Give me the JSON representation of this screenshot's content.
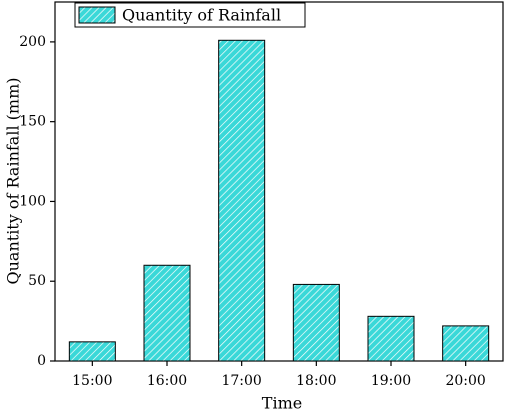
{
  "chart_data": {
    "type": "bar",
    "x_label": "Time",
    "y_label": "Quantity of Rainfall (mm)",
    "categories": [
      "15:00",
      "16:00",
      "17:00",
      "18:00",
      "19:00",
      "20:00"
    ],
    "series": [
      {
        "name": "Quantity of Rainfall",
        "color": "#3ad8d8",
        "values": [
          12,
          60,
          201,
          48,
          28,
          22
        ]
      }
    ],
    "ylim": [
      0,
      225
    ],
    "yticks": [
      0,
      50,
      100,
      150,
      200
    ],
    "hatch": true,
    "legend": "top-left"
  }
}
